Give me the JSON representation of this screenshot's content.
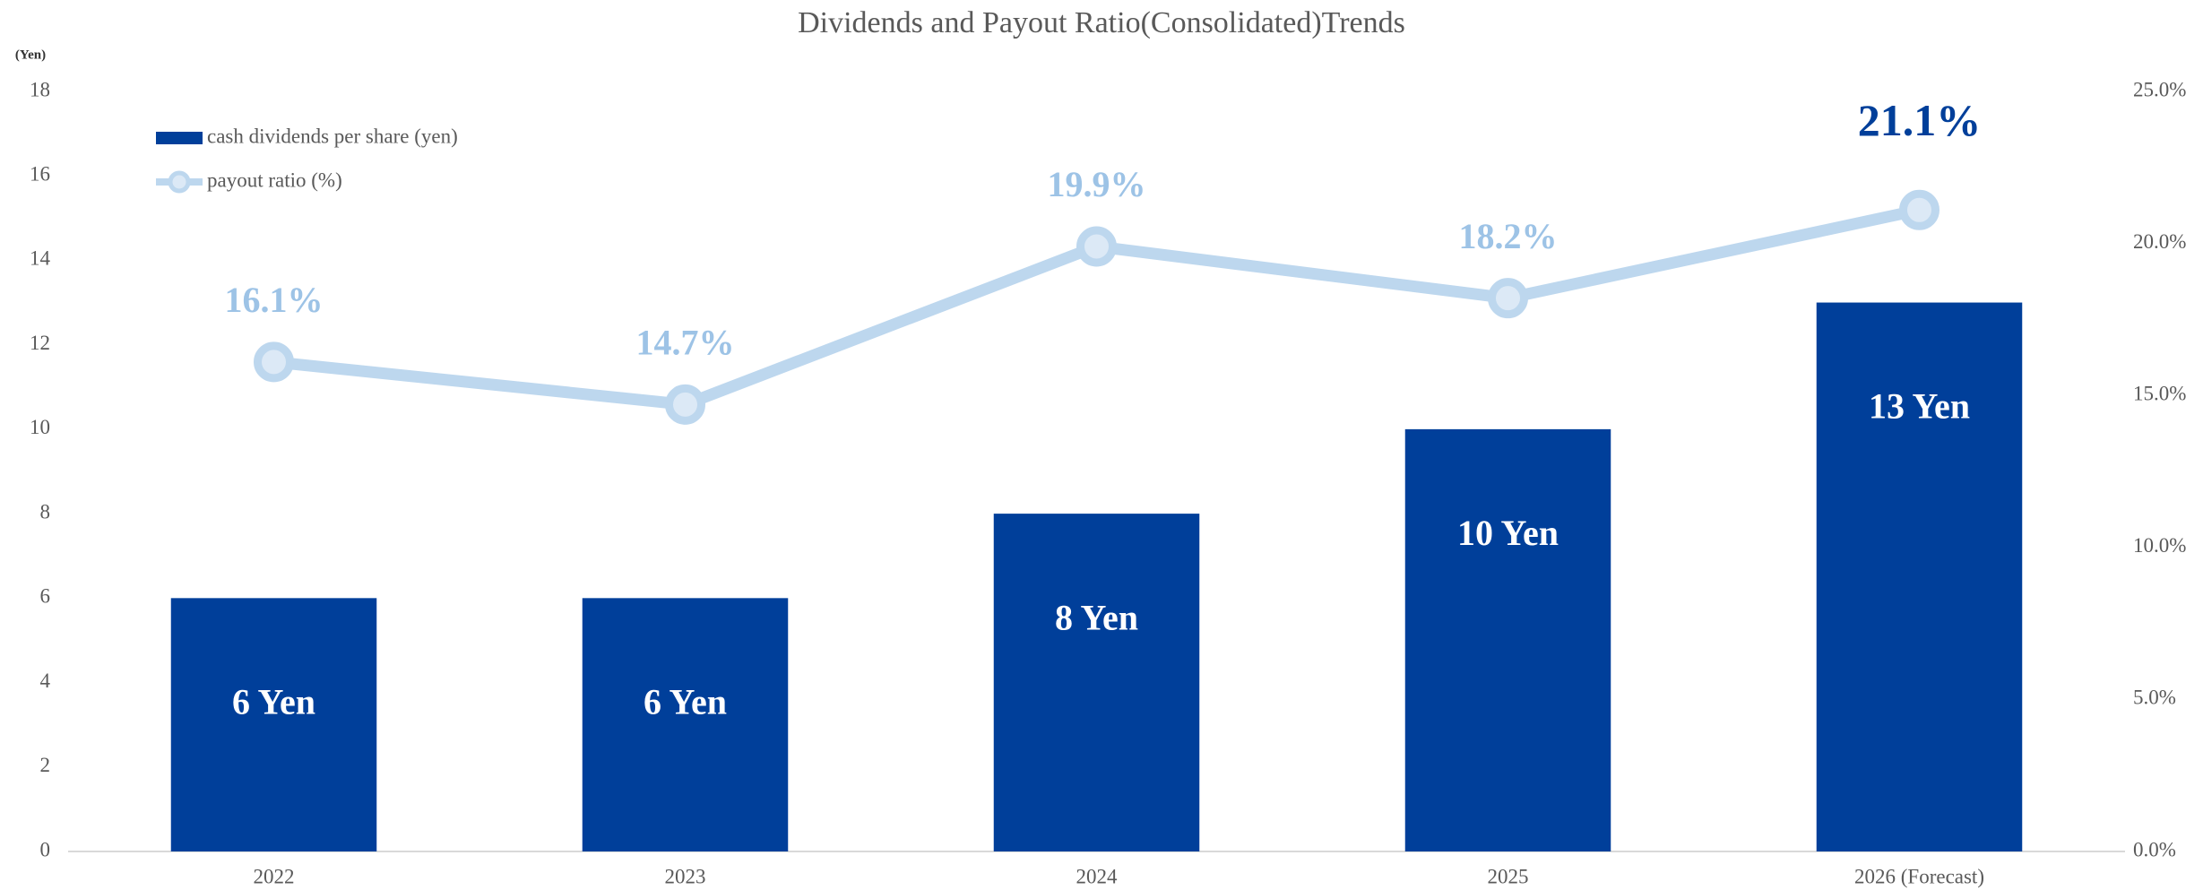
{
  "chart_data": {
    "type": "bar",
    "title": "Dividends and Payout Ratio(Consolidated)Trends",
    "y_label": "(Yen)",
    "categories": [
      "2022",
      "2023",
      "2024",
      "2025",
      "2026 (Forecast)"
    ],
    "series": [
      {
        "name": "cash dividends per share (yen)",
        "type": "bar",
        "color": "#003f9a",
        "label_color": "#ffffff",
        "values": [
          6,
          6,
          8,
          10,
          13
        ],
        "value_labels": [
          "6 Yen",
          "6 Yen",
          "8 Yen",
          "10 Yen",
          "13 Yen"
        ]
      },
      {
        "name": "payout ratio (%)",
        "type": "line",
        "axis": "y2",
        "color": "#bdd7ee",
        "marker_fill": "#dce9f6",
        "values": [
          16.1,
          14.7,
          19.9,
          18.2,
          21.1
        ],
        "value_labels": [
          "16.1%",
          "14.7%",
          "19.9%",
          "18.2%",
          "21.1%"
        ],
        "label_colors": [
          "#9dc3e6",
          "#9dc3e6",
          "#9dc3e6",
          "#9dc3e6",
          "#003f9a"
        ]
      }
    ],
    "ylim": [
      0,
      18
    ],
    "yticks": [
      0,
      2,
      4,
      6,
      8,
      10,
      12,
      14,
      16,
      18
    ],
    "y2lim": [
      0,
      25
    ],
    "y2ticks": [
      {
        "value": 0,
        "label": "0.0%"
      },
      {
        "value": 5,
        "label": "5.0%"
      },
      {
        "value": 10,
        "label": "10.0%"
      },
      {
        "value": 15,
        "label": "15.0%"
      },
      {
        "value": 20,
        "label": "20.0%"
      },
      {
        "value": 25,
        "label": "25.0%"
      }
    ],
    "grid": false,
    "legend": "upper left"
  }
}
